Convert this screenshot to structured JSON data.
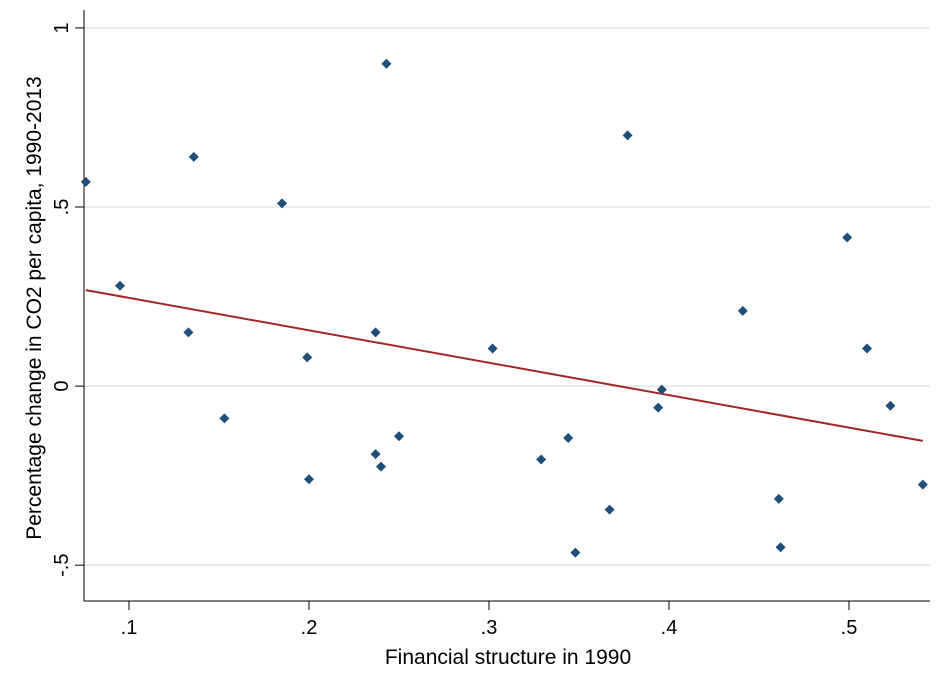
{
  "chart_data": {
    "type": "scatter",
    "title": "",
    "xlabel": "Financial structure in 1990",
    "ylabel": "Percentage change in CO2 per capita, 1990-2013",
    "xlim": [
      0.075,
      0.545
    ],
    "ylim": [
      -0.6,
      1.05
    ],
    "x_ticks": [
      0.1,
      0.2,
      0.3,
      0.4,
      0.5
    ],
    "x_tick_labels": [
      ".1",
      ".2",
      ".3",
      ".4",
      ".5"
    ],
    "y_ticks": [
      -0.5,
      0,
      0.5,
      1
    ],
    "y_tick_labels": [
      "-.5",
      "0",
      ".5",
      "1"
    ],
    "grid": "horizontal",
    "legend": "none",
    "marker": "diamond",
    "colors": {
      "points": "#1f4e79",
      "fit_line": "#a32626",
      "grid": "#dde6ec",
      "axis": "#000000",
      "background": "#ffffff"
    },
    "points": [
      {
        "x": 0.076,
        "y": 0.57
      },
      {
        "x": 0.095,
        "y": 0.28
      },
      {
        "x": 0.133,
        "y": 0.15
      },
      {
        "x": 0.136,
        "y": 0.64
      },
      {
        "x": 0.153,
        "y": -0.09
      },
      {
        "x": 0.185,
        "y": 0.51
      },
      {
        "x": 0.199,
        "y": 0.08
      },
      {
        "x": 0.2,
        "y": -0.26
      },
      {
        "x": 0.237,
        "y": 0.15
      },
      {
        "x": 0.237,
        "y": -0.19
      },
      {
        "x": 0.24,
        "y": -0.225
      },
      {
        "x": 0.243,
        "y": 0.9
      },
      {
        "x": 0.25,
        "y": -0.14
      },
      {
        "x": 0.302,
        "y": 0.105
      },
      {
        "x": 0.329,
        "y": -0.205
      },
      {
        "x": 0.344,
        "y": -0.145
      },
      {
        "x": 0.348,
        "y": -0.465
      },
      {
        "x": 0.367,
        "y": -0.345
      },
      {
        "x": 0.377,
        "y": 0.7
      },
      {
        "x": 0.394,
        "y": -0.06
      },
      {
        "x": 0.396,
        "y": -0.01
      },
      {
        "x": 0.441,
        "y": 0.21
      },
      {
        "x": 0.461,
        "y": -0.315
      },
      {
        "x": 0.462,
        "y": -0.45
      },
      {
        "x": 0.499,
        "y": 0.415
      },
      {
        "x": 0.51,
        "y": 0.105
      },
      {
        "x": 0.523,
        "y": -0.055
      },
      {
        "x": 0.541,
        "y": -0.275
      }
    ],
    "fit_line": {
      "x": [
        0.076,
        0.541
      ],
      "y": [
        0.268,
        -0.153
      ]
    }
  }
}
